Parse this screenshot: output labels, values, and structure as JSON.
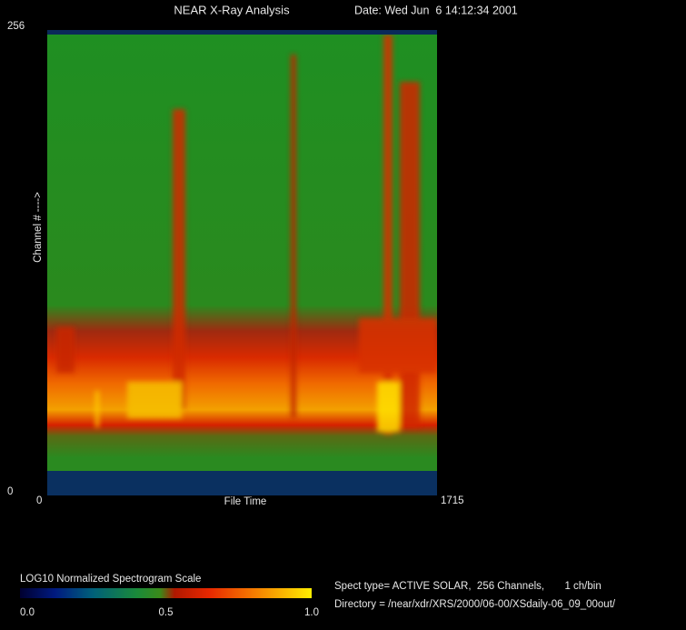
{
  "chart_data": {
    "type": "spectrogram",
    "title": "NEAR X-Ray Analysis",
    "date": "Date: Wed Jun  6 14:12:34 2001",
    "x_label": "File Time",
    "y_label": "Channel # ---->",
    "xlim": [
      0,
      1715
    ],
    "xticks": [
      0,
      1715
    ],
    "ylim": [
      0,
      256
    ],
    "yticks": [
      0,
      256
    ],
    "colorbar": {
      "title": "LOG10 Normalized Spectrogram Scale",
      "lim": [
        0,
        1
      ],
      "ticks": [
        {
          "value": 0,
          "label": "0.0"
        },
        {
          "value": 0.5,
          "label": "0.5"
        },
        {
          "value": 1,
          "label": "1.0"
        }
      ]
    },
    "spect_type": "Spect type= ACTIVE SOLAR,  256 Channels,       1 ch/bin",
    "directory": "Directory = /near/xdr/XRS/2000/06-00/XSdaily-06_09_00out/"
  }
}
